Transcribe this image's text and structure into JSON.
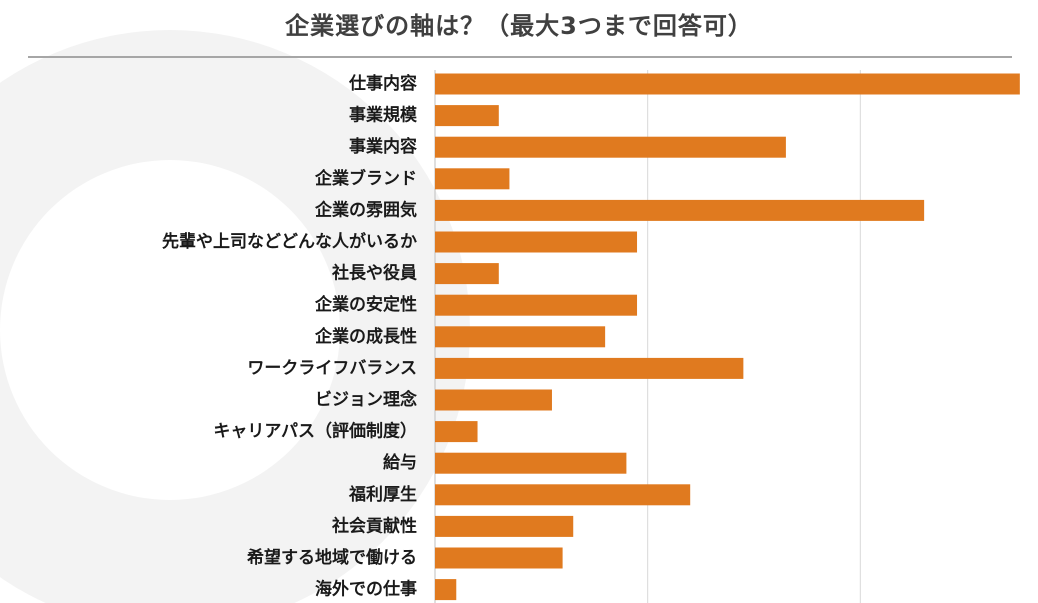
{
  "chart_data": {
    "type": "bar",
    "orientation": "horizontal",
    "title": "企業選びの軸は？（最大3つまで回答可）",
    "xlabel": "",
    "ylabel": "",
    "xlim": [
      0,
      60
    ],
    "grid": true,
    "bar_color": "#E07A1F",
    "categories": [
      "仕事内容",
      "事業規模",
      "事業内容",
      "企業ブランド",
      "企業の雰囲気",
      "先輩や上司などどんな人がいるか",
      "社長や役員",
      "企業の安定性",
      "企業の成長性",
      "ワークライフバランス",
      "ビジョン理念",
      "キャリアパス（評価制度）",
      "給与",
      "福利厚生",
      "社会貢献性",
      "希望する地域で働ける",
      "海外での仕事"
    ],
    "values": [
      55,
      6,
      33,
      7,
      46,
      19,
      6,
      19,
      16,
      29,
      11,
      4,
      18,
      24,
      13,
      12,
      2
    ]
  }
}
